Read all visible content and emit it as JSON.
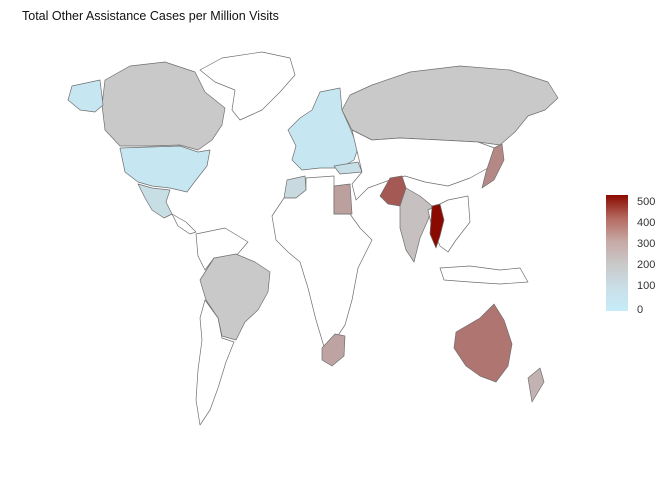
{
  "map": {
    "title": "Total Other Assistance Cases per Million Visits",
    "colors": {
      "no_data": "#ffffff",
      "zero": "#c6ecf8",
      "grey_mid": "#c9c9c9",
      "high": "#8b0a00",
      "border": "#6f6f6f"
    },
    "legend": {
      "ticks": [
        "500",
        "400",
        "300",
        "200",
        "100",
        "0"
      ],
      "min": 0,
      "max": 560,
      "gradient": [
        "#8b0a00",
        "#b46a60",
        "#c7a9a6",
        "#c9c9c9",
        "#c9dfe8",
        "#c6ecf8"
      ]
    },
    "regions": [
      {
        "name": "Canada",
        "value": 150
      },
      {
        "name": "United States",
        "value": 20
      },
      {
        "name": "Mexico",
        "value": 60
      },
      {
        "name": "Brazil",
        "value": 150
      },
      {
        "name": "Russia",
        "value": 150
      },
      {
        "name": "Europe",
        "value": 20
      },
      {
        "name": "Turkey",
        "value": 50
      },
      {
        "name": "Egypt",
        "value": 240
      },
      {
        "name": "Morocco",
        "value": 80
      },
      {
        "name": "Pakistan",
        "value": 390
      },
      {
        "name": "India",
        "value": 170
      },
      {
        "name": "Thailand",
        "value": 560
      },
      {
        "name": "Japan",
        "value": 290
      },
      {
        "name": "Australia",
        "value": 330
      },
      {
        "name": "New Zealand",
        "value": 200
      },
      {
        "name": "South Africa",
        "value": 230
      },
      {
        "name": "Alaska",
        "value": 20
      }
    ]
  }
}
